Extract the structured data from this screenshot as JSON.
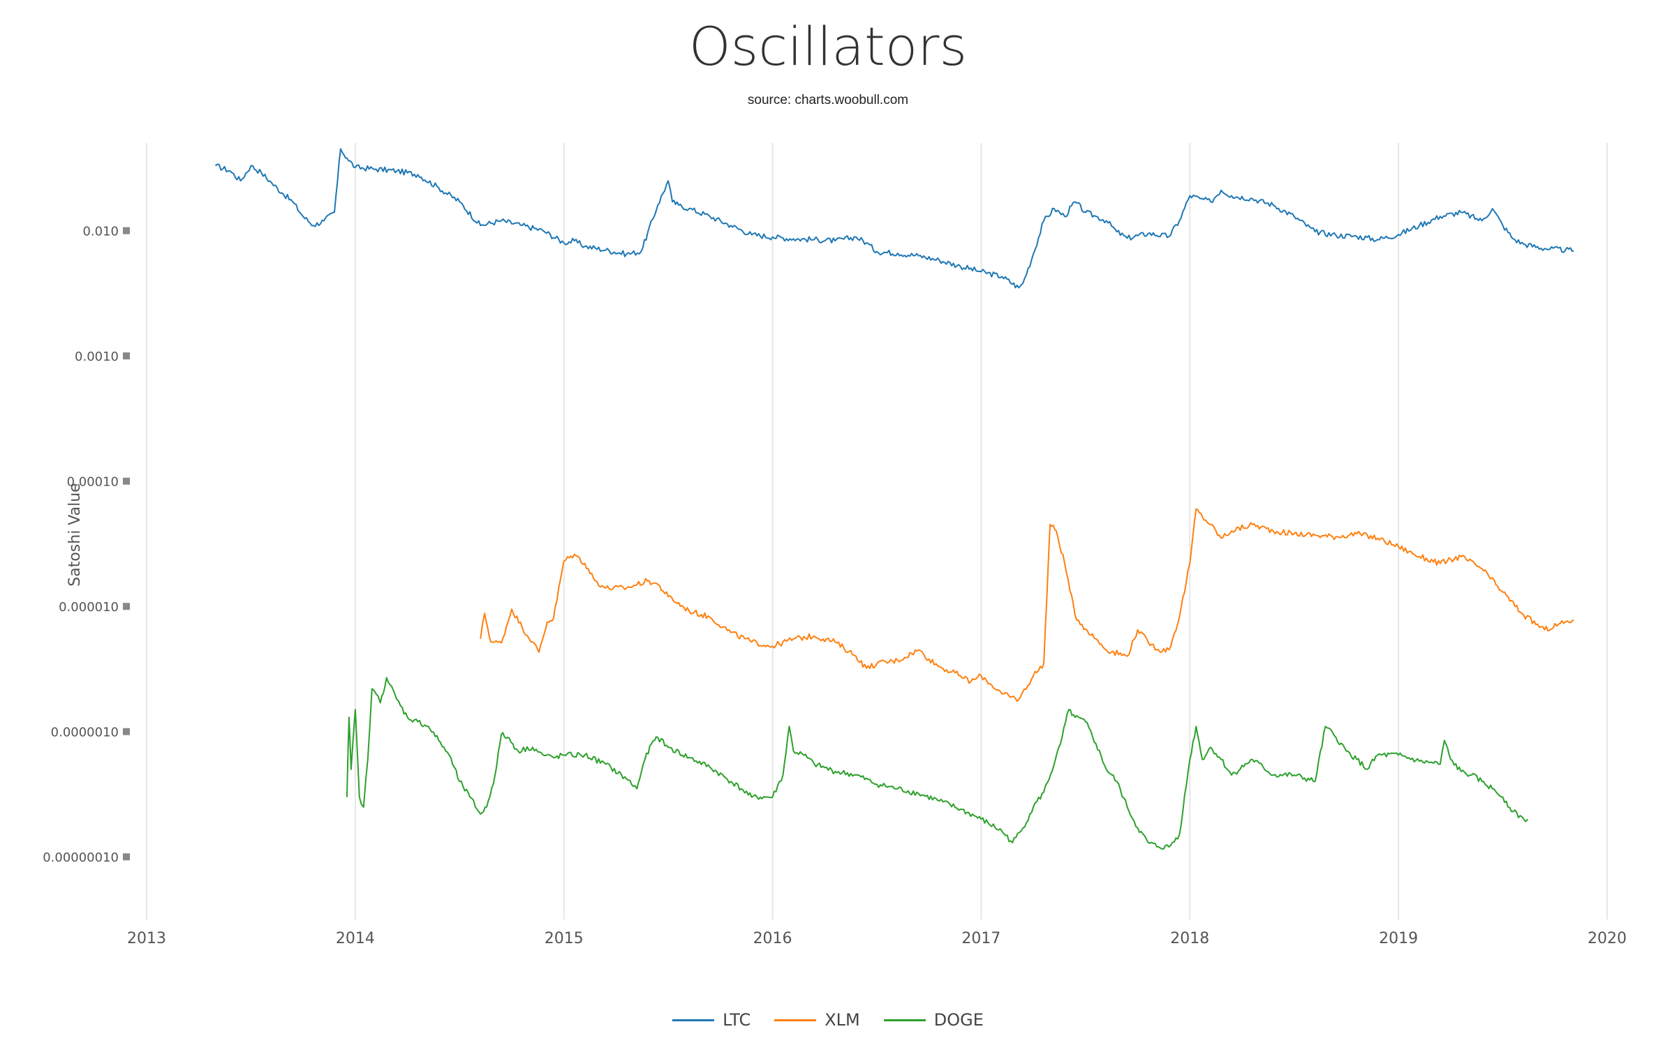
{
  "chart_data": {
    "type": "line",
    "title": "Oscillators",
    "subtitle": "source: charts.woobull.com",
    "xlabel": "",
    "ylabel": "Satoshi Value",
    "x_scale": "time",
    "y_scale": "log",
    "xlim": [
      2013.0,
      2020.0
    ],
    "ylim_log10": [
      -7.5,
      -1.3
    ],
    "x_ticks": [
      "2013",
      "2014",
      "2015",
      "2016",
      "2017",
      "2018",
      "2019",
      "2020"
    ],
    "y_ticks": [
      {
        "label": "0.010",
        "value": 0.01
      },
      {
        "label": "0.0010",
        "value": 0.001
      },
      {
        "label": "0.00010",
        "value": 0.0001
      },
      {
        "label": "0.000010",
        "value": 1e-05
      },
      {
        "label": "0.0000010",
        "value": 1e-06
      },
      {
        "label": "0.00000010",
        "value": 1e-07
      }
    ],
    "grid": true,
    "legend_position": "bottom-center",
    "series": [
      {
        "name": "LTC",
        "color": "#1f77b4",
        "x": [
          2013.33,
          2013.4,
          2013.45,
          2013.5,
          2013.55,
          2013.6,
          2013.65,
          2013.7,
          2013.75,
          2013.8,
          2013.85,
          2013.9,
          2013.93,
          2013.96,
          2014.0,
          2014.1,
          2014.2,
          2014.3,
          2014.4,
          2014.5,
          2014.6,
          2014.7,
          2014.8,
          2014.9,
          2015.0,
          2015.05,
          2015.1,
          2015.2,
          2015.3,
          2015.37,
          2015.45,
          2015.5,
          2015.52,
          2015.55,
          2015.6,
          2015.7,
          2015.8,
          2015.9,
          2016.0,
          2016.1,
          2016.2,
          2016.3,
          2016.4,
          2016.45,
          2016.5,
          2016.6,
          2016.7,
          2016.8,
          2016.9,
          2017.0,
          2017.1,
          2017.18,
          2017.2,
          2017.25,
          2017.3,
          2017.35,
          2017.4,
          2017.45,
          2017.5,
          2017.55,
          2017.6,
          2017.65,
          2017.7,
          2017.8,
          2017.9,
          2017.95,
          2018.0,
          2018.05,
          2018.1,
          2018.15,
          2018.2,
          2018.3,
          2018.4,
          2018.5,
          2018.6,
          2018.7,
          2018.8,
          2018.9,
          2019.0,
          2019.1,
          2019.2,
          2019.3,
          2019.4,
          2019.45,
          2019.5,
          2019.55,
          2019.6,
          2019.7,
          2019.8,
          2019.84
        ],
        "y": [
          0.033,
          0.03,
          0.025,
          0.033,
          0.029,
          0.024,
          0.02,
          0.017,
          0.013,
          0.011,
          0.012,
          0.014,
          0.045,
          0.038,
          0.032,
          0.031,
          0.03,
          0.028,
          0.022,
          0.017,
          0.011,
          0.012,
          0.011,
          0.01,
          0.008,
          0.0083,
          0.0075,
          0.007,
          0.0065,
          0.0068,
          0.016,
          0.025,
          0.017,
          0.016,
          0.015,
          0.013,
          0.011,
          0.0093,
          0.0089,
          0.0086,
          0.0085,
          0.0083,
          0.0089,
          0.008,
          0.0068,
          0.0066,
          0.0063,
          0.0058,
          0.0052,
          0.0047,
          0.0043,
          0.0035,
          0.0038,
          0.0065,
          0.012,
          0.015,
          0.013,
          0.017,
          0.014,
          0.013,
          0.012,
          0.0098,
          0.0087,
          0.0095,
          0.009,
          0.012,
          0.019,
          0.018,
          0.017,
          0.021,
          0.019,
          0.018,
          0.016,
          0.013,
          0.0098,
          0.0092,
          0.009,
          0.0085,
          0.0093,
          0.011,
          0.013,
          0.014,
          0.012,
          0.015,
          0.011,
          0.0086,
          0.0078,
          0.0072,
          0.007,
          0.0069
        ]
      },
      {
        "name": "XLM",
        "color": "#ff7f0e",
        "x": [
          2014.6,
          2014.62,
          2014.65,
          2014.7,
          2014.75,
          2014.8,
          2014.85,
          2014.88,
          2014.92,
          2014.95,
          2015.0,
          2015.05,
          2015.1,
          2015.15,
          2015.2,
          2015.3,
          2015.4,
          2015.45,
          2015.5,
          2015.6,
          2015.7,
          2015.8,
          2015.9,
          2016.0,
          2016.1,
          2016.2,
          2016.3,
          2016.4,
          2016.45,
          2016.5,
          2016.6,
          2016.7,
          2016.75,
          2016.8,
          2016.9,
          2016.95,
          2017.0,
          2017.1,
          2017.18,
          2017.25,
          2017.3,
          2017.33,
          2017.36,
          2017.4,
          2017.45,
          2017.5,
          2017.55,
          2017.6,
          2017.7,
          2017.75,
          2017.8,
          2017.85,
          2017.9,
          2017.95,
          2018.0,
          2018.03,
          2018.06,
          2018.1,
          2018.15,
          2018.2,
          2018.3,
          2018.4,
          2018.5,
          2018.6,
          2018.7,
          2018.8,
          2018.9,
          2019.0,
          2019.1,
          2019.2,
          2019.3,
          2019.4,
          2019.5,
          2019.6,
          2019.7,
          2019.8,
          2019.84
        ],
        "y": [
          5.5e-06,
          8.8e-06,
          5.2e-06,
          5.1e-06,
          9.5e-06,
          6.8e-06,
          5.2e-06,
          4.3e-06,
          7.5e-06,
          8e-06,
          2.3e-05,
          2.6e-05,
          2.2e-05,
          1.6e-05,
          1.4e-05,
          1.4e-05,
          1.6e-05,
          1.5e-05,
          1.2e-05,
          9.2e-06,
          8.2e-06,
          6.2e-06,
          5.2e-06,
          4.8e-06,
          5.5e-06,
          5.8e-06,
          5.2e-06,
          4e-06,
          3.2e-06,
          3.5e-06,
          3.7e-06,
          4.5e-06,
          3.8e-06,
          3.3e-06,
          2.8e-06,
          2.5e-06,
          2.8e-06,
          2e-06,
          1.8e-06,
          2.8e-06,
          3.5e-06,
          4.5e-05,
          4e-05,
          2.2e-05,
          8.5e-06,
          6.6e-06,
          5.5e-06,
          4.5e-06,
          4e-06,
          6.5e-06,
          5.2e-06,
          4.5e-06,
          4.5e-06,
          8.2e-06,
          2.2e-05,
          6e-05,
          5.2e-05,
          4.5e-05,
          3.5e-05,
          4e-05,
          4.5e-05,
          4e-05,
          3.8e-05,
          3.7e-05,
          3.6e-05,
          3.8e-05,
          3.5e-05,
          3e-05,
          2.5e-05,
          2.2e-05,
          2.5e-05,
          2e-05,
          1.3e-05,
          8.5e-06,
          6.5e-06,
          7.5e-06,
          7.8e-06
        ]
      },
      {
        "name": "DOGE",
        "color": "#2ca02c",
        "x": [
          2013.96,
          2013.97,
          2013.98,
          2014.0,
          2014.02,
          2014.04,
          2014.06,
          2014.08,
          2014.1,
          2014.12,
          2014.15,
          2014.2,
          2014.25,
          2014.3,
          2014.35,
          2014.4,
          2014.45,
          2014.5,
          2014.55,
          2014.6,
          2014.63,
          2014.67,
          2014.7,
          2014.73,
          2014.78,
          2014.85,
          2014.9,
          2014.95,
          2015.0,
          2015.1,
          2015.2,
          2015.3,
          2015.35,
          2015.38,
          2015.42,
          2015.45,
          2015.5,
          2015.6,
          2015.7,
          2015.8,
          2015.85,
          2015.9,
          2016.0,
          2016.05,
          2016.08,
          2016.1,
          2016.15,
          2016.2,
          2016.3,
          2016.4,
          2016.5,
          2016.6,
          2016.7,
          2016.8,
          2016.9,
          2017.0,
          2017.1,
          2017.15,
          2017.2,
          2017.25,
          2017.3,
          2017.35,
          2017.38,
          2017.42,
          2017.45,
          2017.5,
          2017.55,
          2017.6,
          2017.65,
          2017.7,
          2017.75,
          2017.8,
          2017.85,
          2017.9,
          2017.95,
          2018.0,
          2018.03,
          2018.06,
          2018.1,
          2018.15,
          2018.2,
          2018.3,
          2018.4,
          2018.5,
          2018.6,
          2018.65,
          2018.7,
          2018.75,
          2018.8,
          2018.85,
          2018.9,
          2019.0,
          2019.1,
          2019.2,
          2019.22,
          2019.25,
          2019.3,
          2019.35,
          2019.4,
          2019.45,
          2019.5,
          2019.55,
          2019.6,
          2019.62
        ],
        "y": [
          3e-07,
          1.3e-06,
          5e-07,
          1.5e-06,
          3e-07,
          2.5e-07,
          6e-07,
          2.2e-06,
          2e-06,
          1.7e-06,
          2.7e-06,
          1.8e-06,
          1.3e-06,
          1.2e-06,
          1.1e-06,
          8.5e-07,
          6.5e-07,
          4e-07,
          3e-07,
          2.2e-07,
          2.5e-07,
          4.5e-07,
          9.5e-07,
          9e-07,
          7e-07,
          7.5e-07,
          6.5e-07,
          6.2e-07,
          6.5e-07,
          6.5e-07,
          5.5e-07,
          4.2e-07,
          3.5e-07,
          5.5e-07,
          8e-07,
          9e-07,
          7.5e-07,
          6.2e-07,
          5.2e-07,
          4e-07,
          3.5e-07,
          3e-07,
          3e-07,
          4.5e-07,
          1.1e-06,
          7e-07,
          6.5e-07,
          5.5e-07,
          4.8e-07,
          4.5e-07,
          3.8e-07,
          3.5e-07,
          3.2e-07,
          2.8e-07,
          2.4e-07,
          2e-07,
          1.6e-07,
          1.3e-07,
          1.7e-07,
          2.5e-07,
          3.3e-07,
          5.5e-07,
          8e-07,
          1.5e-06,
          1.3e-06,
          1.2e-06,
          8e-07,
          5e-07,
          4e-07,
          2.5e-07,
          1.7e-07,
          1.3e-07,
          1.2e-07,
          1.2e-07,
          1.5e-07,
          6e-07,
          1.1e-06,
          6e-07,
          7.5e-07,
          6e-07,
          4.5e-07,
          6e-07,
          4.5e-07,
          4.5e-07,
          4e-07,
          1.1e-06,
          9e-07,
          7e-07,
          6e-07,
          5e-07,
          6.5e-07,
          6.5e-07,
          5.8e-07,
          5.5e-07,
          8.5e-07,
          6e-07,
          4.8e-07,
          4.5e-07,
          4e-07,
          3.5e-07,
          3e-07,
          2.3e-07,
          2e-07,
          2e-07
        ]
      }
    ]
  }
}
